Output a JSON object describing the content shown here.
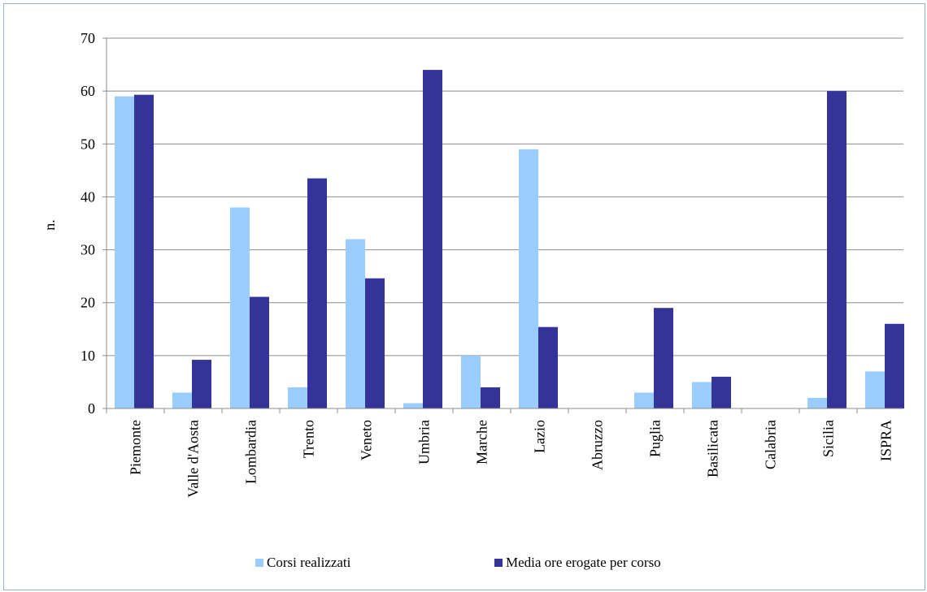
{
  "chart_data": {
    "type": "bar",
    "title": "",
    "xlabel": "",
    "ylabel": "n.",
    "ylim": [
      0,
      70
    ],
    "yticks": [
      0,
      10,
      20,
      30,
      40,
      50,
      60,
      70
    ],
    "grid": true,
    "legend_position": "bottom",
    "categories": [
      "Piemonte",
      "Valle d'Aosta",
      "Lombardia",
      "Trento",
      "Veneto",
      "Umbria",
      "Marche",
      "Lazio",
      "Abruzzo",
      "Puglia",
      "Basilicata",
      "Calabria",
      "Sicilia",
      "ISPRA"
    ],
    "series": [
      {
        "name": "Corsi realizzati",
        "color": "#99ccff",
        "values": [
          59,
          3,
          38,
          4,
          32,
          1,
          10,
          49,
          0,
          3,
          5,
          0,
          2,
          7
        ]
      },
      {
        "name": "Media ore erogate per corso",
        "color": "#333399",
        "values": [
          59.3,
          9.2,
          21.1,
          43.5,
          24.6,
          64,
          4,
          15.4,
          0,
          19,
          6,
          0,
          60,
          16
        ]
      }
    ]
  }
}
